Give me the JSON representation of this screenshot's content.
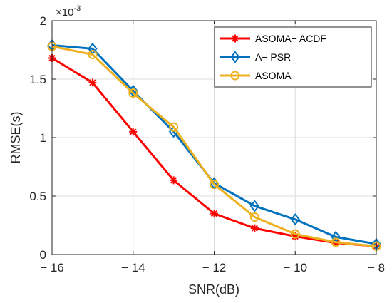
{
  "chart_data": {
    "type": "line",
    "xlabel": "SNR(dB)",
    "ylabel": "RMSE(s)",
    "y_multiplier_label": "×10",
    "y_multiplier_exp": "-3",
    "xlim": [
      -16,
      -8
    ],
    "ylim": [
      0,
      2
    ],
    "x_ticks": [
      -16,
      -14,
      -12,
      -10,
      -8
    ],
    "x_tick_labels": [
      "− 16",
      "− 14",
      "− 12",
      "− 10",
      "− 8"
    ],
    "y_ticks": [
      0,
      0.5,
      1,
      1.5,
      2
    ],
    "y_tick_labels": [
      "0",
      "0.5",
      "1",
      "1.5",
      "2"
    ],
    "grid": true,
    "legend_position": "top-right",
    "x": [
      -16,
      -15,
      -14,
      -13,
      -12,
      -11,
      -10,
      -9,
      -8
    ],
    "series": [
      {
        "name": "ASOMA− ACDF",
        "color": "#ff0000",
        "marker": "asterisk",
        "values": [
          1.68,
          1.47,
          1.05,
          0.635,
          0.35,
          0.225,
          0.155,
          0.1,
          0.07
        ]
      },
      {
        "name": "A− PSR",
        "color": "#0072bd",
        "marker": "diamond",
        "values": [
          1.79,
          1.76,
          1.4,
          1.05,
          0.61,
          0.415,
          0.3,
          0.15,
          0.09
        ]
      },
      {
        "name": "ASOMA",
        "color": "#edb120",
        "marker": "circle",
        "values": [
          1.78,
          1.71,
          1.38,
          1.09,
          0.6,
          0.32,
          0.175,
          0.105,
          0.07
        ]
      }
    ]
  }
}
